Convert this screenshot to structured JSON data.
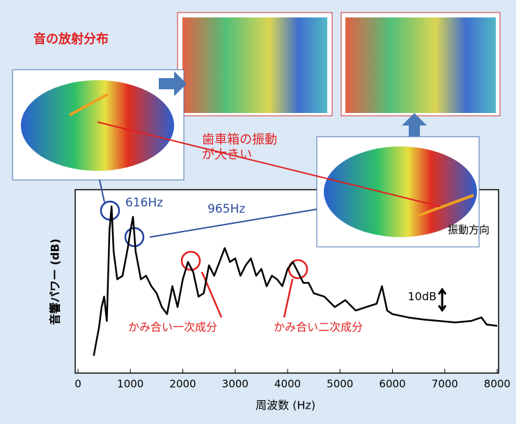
{
  "chart_data": {
    "type": "line",
    "title": "音の放射分布",
    "x_label": "周波数 (Hz)",
    "y_label": "音響パワー (dB)",
    "x": [
      300,
      350,
      400,
      450,
      500,
      550,
      600,
      640,
      680,
      750,
      850,
      950,
      1000,
      1050,
      1100,
      1200,
      1300,
      1400,
      1500,
      1600,
      1700,
      1800,
      1900,
      2000,
      2100,
      2200,
      2300,
      2400,
      2500,
      2600,
      2700,
      2800,
      2900,
      3000,
      3100,
      3200,
      3300,
      3400,
      3500,
      3600,
      3700,
      3800,
      3900,
      4000,
      4100,
      4200,
      4300,
      4400,
      4500,
      4700,
      4900,
      5100,
      5300,
      5500,
      5700,
      5800,
      5900,
      6000,
      6300,
      6600,
      6900,
      7200,
      7500,
      7700,
      7800,
      8000
    ],
    "series": [
      {
        "color": "#000000",
        "values": [
          8.3,
          15,
          21.7,
          31.7,
          36.7,
          25,
          68.3,
          80,
          58.3,
          45,
          46.7,
          60,
          68.3,
          75,
          58.3,
          45,
          46.7,
          41.7,
          38.3,
          31.7,
          28.3,
          41.7,
          31.7,
          45,
          53.3,
          48.3,
          36.7,
          38.3,
          51.7,
          46.7,
          53.3,
          60,
          53.3,
          55,
          46.7,
          51.7,
          55,
          46.7,
          50,
          41.7,
          46.7,
          45,
          41.7,
          50,
          53.3,
          48.3,
          43.3,
          43.3,
          38.3,
          36.7,
          31.7,
          35,
          30,
          31.7,
          33.3,
          41.7,
          30,
          28.3,
          26.7,
          25.7,
          25,
          24.3,
          25,
          26.7,
          23.3,
          22.7
        ]
      }
    ],
    "xlim": [
      0,
      8000
    ],
    "xticks": [
      0,
      1000,
      2000,
      3000,
      4000,
      5000,
      6000,
      7000,
      8000
    ],
    "ylim": [
      0,
      88
    ],
    "scale_bar": {
      "value": 10,
      "label": "10dB"
    },
    "annotations": {
      "peak1": "616Hz",
      "peak2": "965Hz",
      "vibration": "歯車箱の振動\nが大きい",
      "mesh1": "かみ合い一次成分",
      "mesh2": "かみ合い二次成分",
      "direction": "振動方向"
    }
  }
}
